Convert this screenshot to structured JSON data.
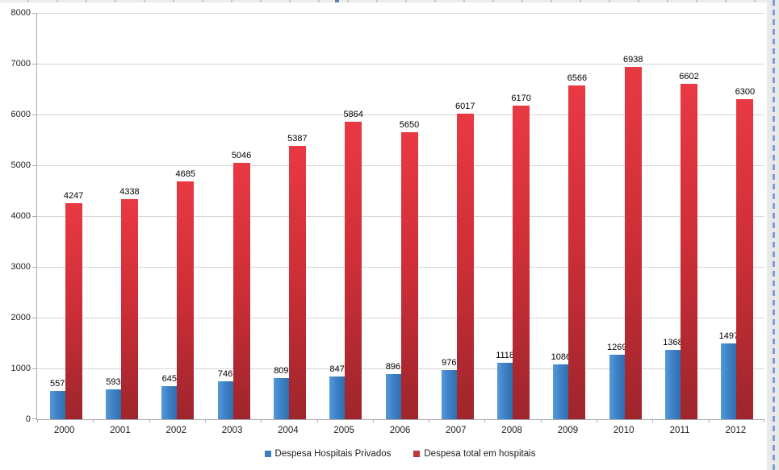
{
  "chart_data": {
    "type": "bar",
    "title": "",
    "xlabel": "",
    "ylabel": "",
    "categories": [
      "2000",
      "2001",
      "2002",
      "2003",
      "2004",
      "2005",
      "2006",
      "2007",
      "2008",
      "2009",
      "2010",
      "2011",
      "2012"
    ],
    "series": [
      {
        "name": "Despesa Hospitais Privados",
        "color": "#3c7dc1",
        "values": [
          557,
          593,
          645,
          746,
          809,
          847,
          896,
          976,
          1118,
          1086,
          1269,
          1368,
          1497
        ]
      },
      {
        "name": "Despesa total em hospitais",
        "color": "#c2333a",
        "values": [
          4247,
          4338,
          4685,
          5046,
          5387,
          5864,
          5650,
          6017,
          6170,
          6566,
          6938,
          6602,
          6300
        ]
      }
    ],
    "ylim": [
      0,
      8000
    ],
    "ytick_interval": 1000,
    "yticks": [
      "0",
      "1000",
      "2000",
      "3000",
      "4000",
      "5000",
      "6000",
      "7000",
      "8000"
    ],
    "grid": true,
    "data_labels": true,
    "legend_position": "bottom"
  }
}
